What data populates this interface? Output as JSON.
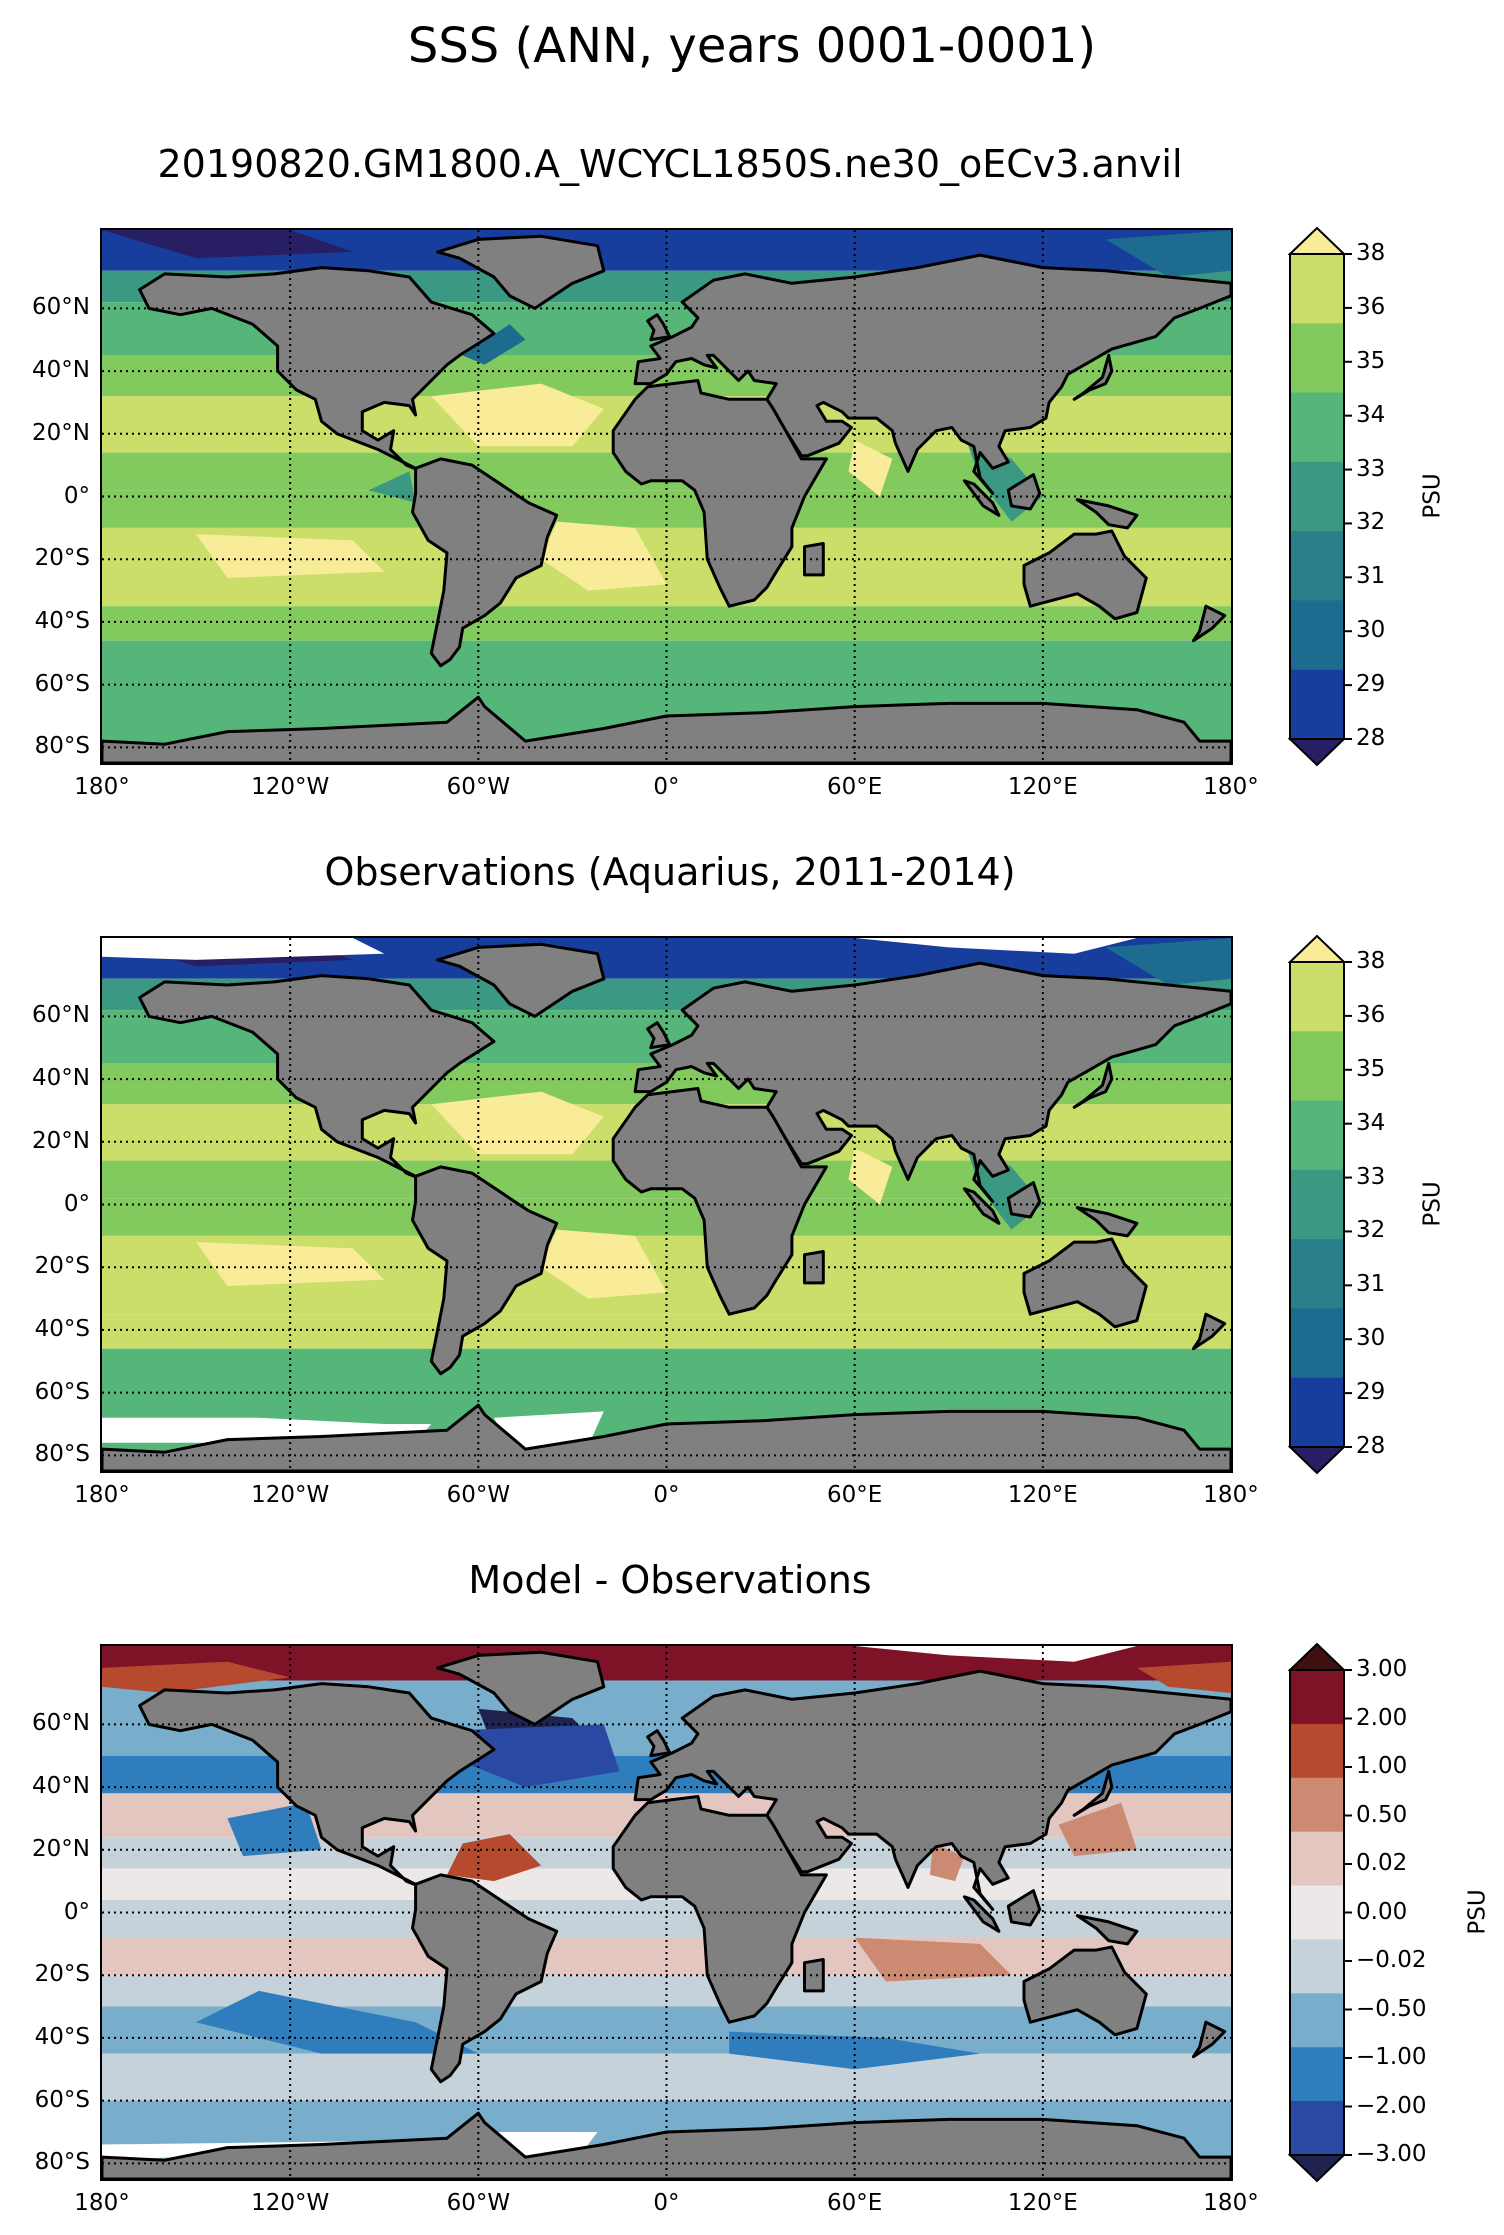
{
  "suptitle": "SSS (ANN, years 0001-0001)",
  "colors": {
    "land": "#808080",
    "sss_levels": [
      "#271e63",
      "#173e9c",
      "#1d6b8f",
      "#2b7f8a",
      "#3b9882",
      "#56b67a",
      "#82c95e",
      "#cbde6a",
      "#f9ec98"
    ],
    "diff_levels": [
      "#1f2350",
      "#2a49a3",
      "#2f7dbd",
      "#78aecb",
      "#c6d2da",
      "#ece8e8",
      "#e3c6bf",
      "#cd8a73",
      "#b54a2f",
      "#7e1227",
      "#3e1010"
    ]
  },
  "axes": {
    "lat_labels": [
      "60°N",
      "40°N",
      "20°N",
      "0°",
      "20°S",
      "40°S",
      "60°S",
      "80°S"
    ],
    "lon_labels": [
      "180°",
      "120°W",
      "60°W",
      "0°",
      "60°E",
      "120°E",
      "180°"
    ]
  },
  "panels": [
    {
      "title": "20190820.GM1800.A_WCYCL1850S.ne30_oECv3.anvil",
      "cbar_label": "PSU",
      "cbar_ticks": [
        "38",
        "36",
        "35",
        "34",
        "33",
        "32",
        "31",
        "30",
        "29",
        "28"
      ]
    },
    {
      "title": "Observations (Aquarius, 2011-2014)",
      "cbar_label": "PSU",
      "cbar_ticks": [
        "38",
        "36",
        "35",
        "34",
        "33",
        "32",
        "31",
        "30",
        "29",
        "28"
      ]
    },
    {
      "title": "Model - Observations",
      "cbar_label": "PSU",
      "cbar_ticks": [
        "3.00",
        "2.00",
        "1.00",
        "0.50",
        "0.02",
        "0.00",
        "−0.02",
        "−0.50",
        "−1.00",
        "−2.00",
        "−3.00"
      ]
    }
  ],
  "chart_data": [
    {
      "type": "heatmap",
      "title": "20190820.GM1800.A_WCYCL1850S.ne30_oECv3.anvil",
      "variable": "SSS",
      "units": "PSU",
      "levels": [
        28,
        29,
        30,
        31,
        32,
        33,
        34,
        35,
        36,
        38
      ],
      "x_range": [
        -180,
        180
      ],
      "y_range": [
        -85,
        85
      ],
      "grid": true
    },
    {
      "type": "heatmap",
      "title": "Observations (Aquarius, 2011-2014)",
      "variable": "SSS",
      "units": "PSU",
      "levels": [
        28,
        29,
        30,
        31,
        32,
        33,
        34,
        35,
        36,
        38
      ],
      "x_range": [
        -180,
        180
      ],
      "y_range": [
        -85,
        85
      ],
      "grid": true
    },
    {
      "type": "heatmap",
      "title": "Model - Observations",
      "variable": "SSS difference",
      "units": "PSU",
      "levels": [
        -3.0,
        -2.0,
        -1.0,
        -0.5,
        -0.02,
        0.0,
        0.02,
        0.5,
        1.0,
        2.0,
        3.0
      ],
      "x_range": [
        -180,
        180
      ],
      "y_range": [
        -85,
        85
      ],
      "grid": true
    }
  ]
}
